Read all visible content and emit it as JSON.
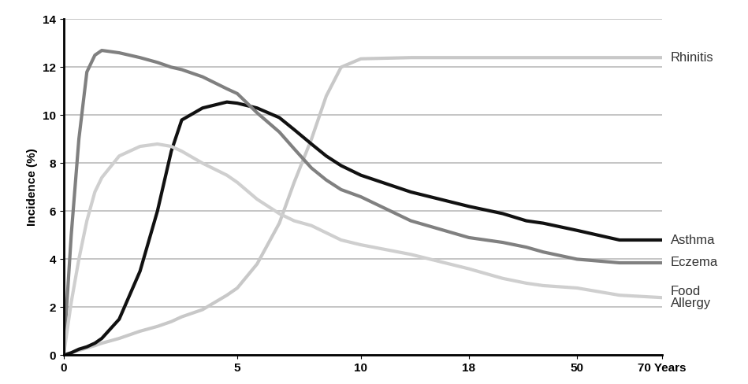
{
  "chart_data": {
    "type": "line",
    "y_label": "Incidence (%)",
    "x": [
      0,
      0.22,
      0.44,
      0.67,
      0.9,
      1.1,
      1.6,
      2.2,
      2.7,
      3.1,
      3.4,
      4.0,
      4.7,
      5,
      5.8,
      6.7,
      7.3,
      8.0,
      8.6,
      9.2,
      10,
      13.7,
      18,
      28,
      35,
      40,
      50,
      60,
      70
    ],
    "series": [
      {
        "name": "Rhinitis",
        "color": "#c8c8c8",
        "values": [
          0,
          0.1,
          0.2,
          0.3,
          0.4,
          0.5,
          0.7,
          1.0,
          1.2,
          1.4,
          1.6,
          1.9,
          2.5,
          2.8,
          3.8,
          5.5,
          7.2,
          9.0,
          10.8,
          12.0,
          12.35,
          12.4,
          12.4,
          12.4,
          12.4,
          12.4,
          12.4,
          12.4,
          12.4
        ]
      },
      {
        "name": "Asthma",
        "color": "#111111",
        "values": [
          0,
          0.1,
          0.25,
          0.35,
          0.5,
          0.7,
          1.5,
          3.5,
          6.0,
          8.5,
          9.8,
          10.3,
          10.55,
          10.5,
          10.3,
          9.9,
          9.4,
          8.8,
          8.3,
          7.9,
          7.5,
          6.8,
          6.2,
          5.9,
          5.6,
          5.5,
          5.2,
          4.8,
          4.8
        ]
      },
      {
        "name": "Eczema",
        "color": "#808080",
        "values": [
          0,
          5,
          9,
          11.8,
          12.5,
          12.7,
          12.6,
          12.4,
          12.2,
          12.0,
          11.9,
          11.6,
          11.1,
          10.9,
          10.1,
          9.3,
          8.6,
          7.8,
          7.3,
          6.9,
          6.6,
          5.6,
          4.9,
          4.7,
          4.5,
          4.3,
          4.0,
          3.85,
          3.85
        ]
      },
      {
        "name": "Food Allergy",
        "color": "#cfcfcf",
        "values": [
          0,
          2.2,
          4,
          5.6,
          6.8,
          7.4,
          8.3,
          8.7,
          8.8,
          8.7,
          8.5,
          8.0,
          7.5,
          7.2,
          6.5,
          5.9,
          5.6,
          5.4,
          5.1,
          4.8,
          4.6,
          4.2,
          3.6,
          3.2,
          3.0,
          2.9,
          2.8,
          2.5,
          2.4
        ]
      }
    ],
    "xlim": [
      0,
      70
    ],
    "xticks": [
      0,
      5,
      10,
      18,
      50,
      {
        "value": 70,
        "label": "70 Years"
      }
    ],
    "ylim": [
      0,
      14
    ],
    "yticks": [
      0,
      2,
      4,
      6,
      8,
      10,
      12,
      14
    ],
    "grid": true
  }
}
